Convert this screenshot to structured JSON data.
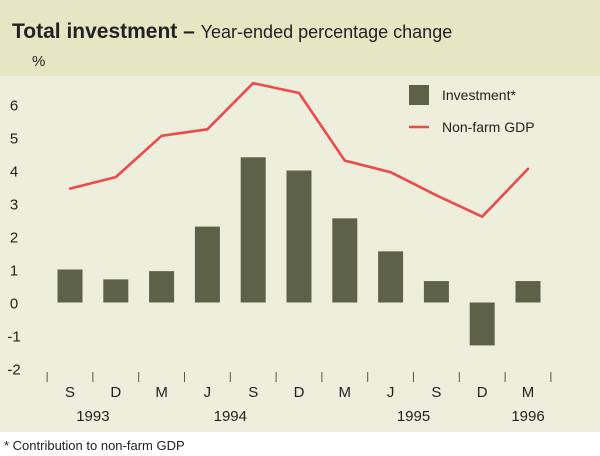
{
  "colors": {
    "header_bg": "#e7e6c4",
    "plot_bg": "#eeeedd",
    "bar": "#5c6148",
    "line": "#ee4a4a",
    "text": "#222222"
  },
  "chart_data": {
    "type": "bar",
    "title": "Total investment",
    "title_sep": " – ",
    "subtitle": "Year-ended percentage change",
    "ylabel": "%",
    "ylim": [
      -2,
      7
    ],
    "yticks": [
      6,
      5,
      4,
      3,
      2,
      1,
      0,
      -1,
      -2
    ],
    "yticklabels": [
      "6",
      "5",
      "4",
      "3",
      "2",
      "1",
      "0",
      "-1",
      "-2"
    ],
    "categories": [
      "S",
      "D",
      "M",
      "J",
      "S",
      "D",
      "M",
      "J",
      "S",
      "D",
      "M"
    ],
    "years": [
      {
        "label": "1993",
        "start": 0,
        "end": 1
      },
      {
        "label": "1994",
        "start": 2,
        "end": 5
      },
      {
        "label": "1995",
        "start": 6,
        "end": 9
      },
      {
        "label": "1996",
        "start": 10,
        "end": 10
      }
    ],
    "series": [
      {
        "name": "Investment*",
        "type": "bar",
        "values": [
          1.0,
          0.7,
          0.95,
          2.3,
          4.4,
          4.0,
          2.55,
          1.55,
          0.65,
          -1.3,
          0.65
        ]
      },
      {
        "name": "Non-farm GDP",
        "type": "line",
        "values": [
          3.45,
          3.8,
          5.05,
          5.25,
          6.65,
          6.35,
          4.3,
          3.95,
          3.25,
          2.6,
          4.05
        ]
      }
    ],
    "legend_position": "top-right",
    "footnote": "* Contribution to non-farm GDP"
  }
}
